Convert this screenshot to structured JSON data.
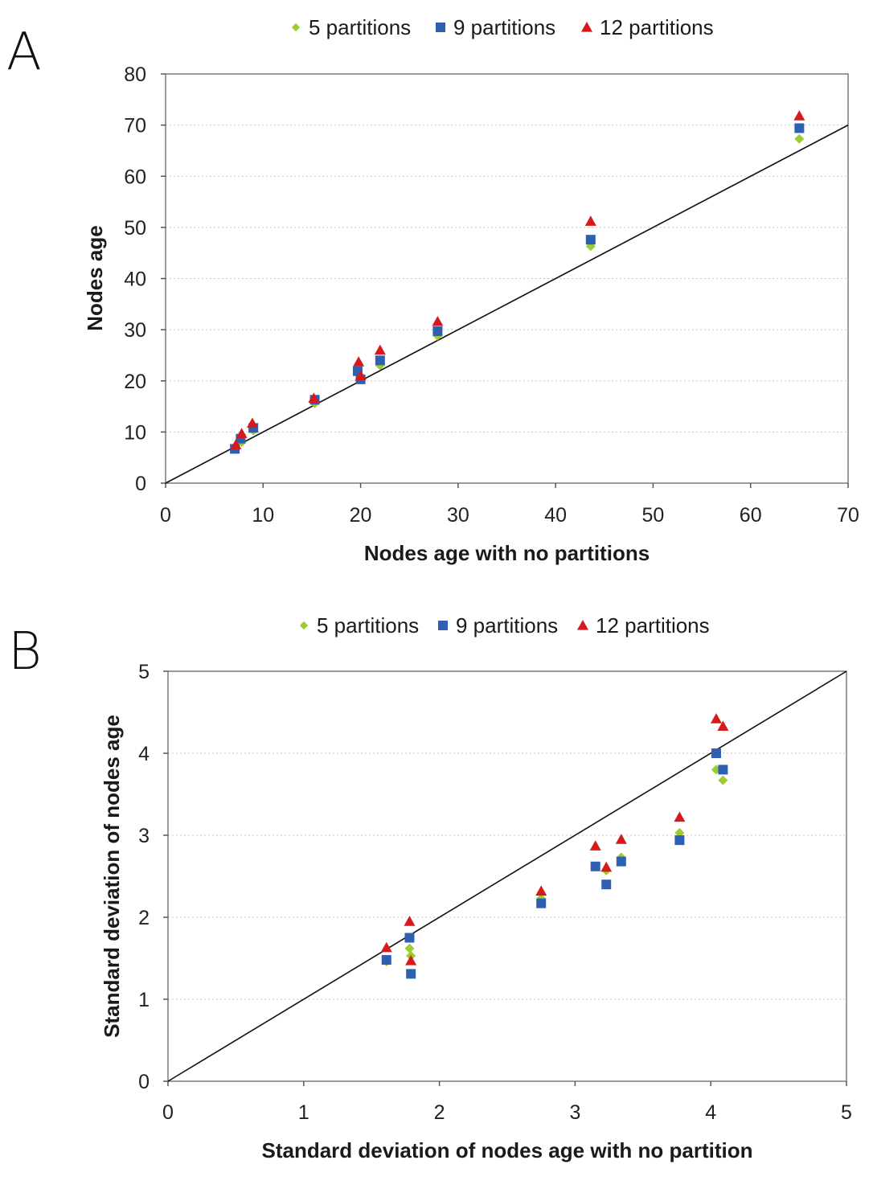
{
  "colors": {
    "5 partitions": "#9ACD32",
    "9 partitions": "#2E5FB0",
    "12 partitions": "#D7191C"
  },
  "chart_data": [
    {
      "panel": "A",
      "type": "scatter",
      "xlabel": "Nodes age with no partitions",
      "ylabel": "Nodes age",
      "xlim": [
        0,
        70
      ],
      "ylim": [
        0,
        80
      ],
      "xticks": [
        0,
        10,
        20,
        30,
        40,
        50,
        60,
        70
      ],
      "yticks": [
        0,
        10,
        20,
        30,
        40,
        50,
        60,
        70,
        80
      ],
      "grid": "horizontal",
      "legend_position": "top",
      "reference_line": "y = x",
      "series": [
        {
          "name": "5 partitions",
          "marker": "diamond",
          "x": [
            7.2,
            7.8,
            9.0,
            15.3,
            19.8,
            20.0,
            22.0,
            27.9,
            43.6,
            65.0
          ],
          "y": [
            7.0,
            8.0,
            10.3,
            15.6,
            21.3,
            20.3,
            23.0,
            28.8,
            46.3,
            67.3
          ]
        },
        {
          "name": "9 partitions",
          "marker": "square",
          "x": [
            7.1,
            7.7,
            9.0,
            15.3,
            19.7,
            20.0,
            22.0,
            27.9,
            43.6,
            65.0
          ],
          "y": [
            6.7,
            8.7,
            10.8,
            16.3,
            21.9,
            20.3,
            24.0,
            29.7,
            47.6,
            69.4
          ]
        },
        {
          "name": "12 partitions",
          "marker": "triangle",
          "x": [
            7.2,
            7.8,
            8.9,
            15.2,
            19.8,
            20.0,
            22.0,
            27.9,
            43.6,
            65.0
          ],
          "y": [
            7.5,
            9.7,
            11.7,
            16.6,
            23.7,
            21.0,
            26.0,
            31.6,
            51.2,
            71.8
          ]
        }
      ]
    },
    {
      "panel": "B",
      "type": "scatter",
      "xlabel": "Standard deviation of nodes age with no partition",
      "ylabel": "Standard deviation of nodes age",
      "xlim": [
        0,
        5
      ],
      "ylim": [
        0,
        5
      ],
      "xticks": [
        0,
        1,
        2,
        3,
        4,
        5
      ],
      "yticks": [
        0,
        1,
        2,
        3,
        4,
        5
      ],
      "grid": "horizontal",
      "legend_position": "top",
      "reference_line": "y = x",
      "series": [
        {
          "name": "5 partitions",
          "marker": "diamond",
          "x": [
            1.61,
            1.78,
            1.79,
            2.75,
            3.15,
            3.23,
            3.34,
            3.77,
            4.04,
            4.09
          ],
          "y": [
            1.46,
            1.62,
            1.53,
            2.23,
            2.62,
            2.57,
            2.73,
            3.03,
            3.8,
            3.67
          ]
        },
        {
          "name": "9 partitions",
          "marker": "square",
          "x": [
            1.61,
            1.78,
            1.79,
            2.75,
            3.15,
            3.23,
            3.34,
            3.77,
            4.04,
            4.09
          ],
          "y": [
            1.48,
            1.75,
            1.31,
            2.17,
            2.62,
            2.4,
            2.68,
            2.94,
            4.0,
            3.8
          ]
        },
        {
          "name": "12 partitions",
          "marker": "triangle",
          "x": [
            1.61,
            1.78,
            1.79,
            2.75,
            3.15,
            3.23,
            3.34,
            3.77,
            4.04,
            4.09
          ],
          "y": [
            1.63,
            1.95,
            1.47,
            2.32,
            2.87,
            2.61,
            2.95,
            3.22,
            4.42,
            4.33
          ]
        }
      ]
    }
  ]
}
